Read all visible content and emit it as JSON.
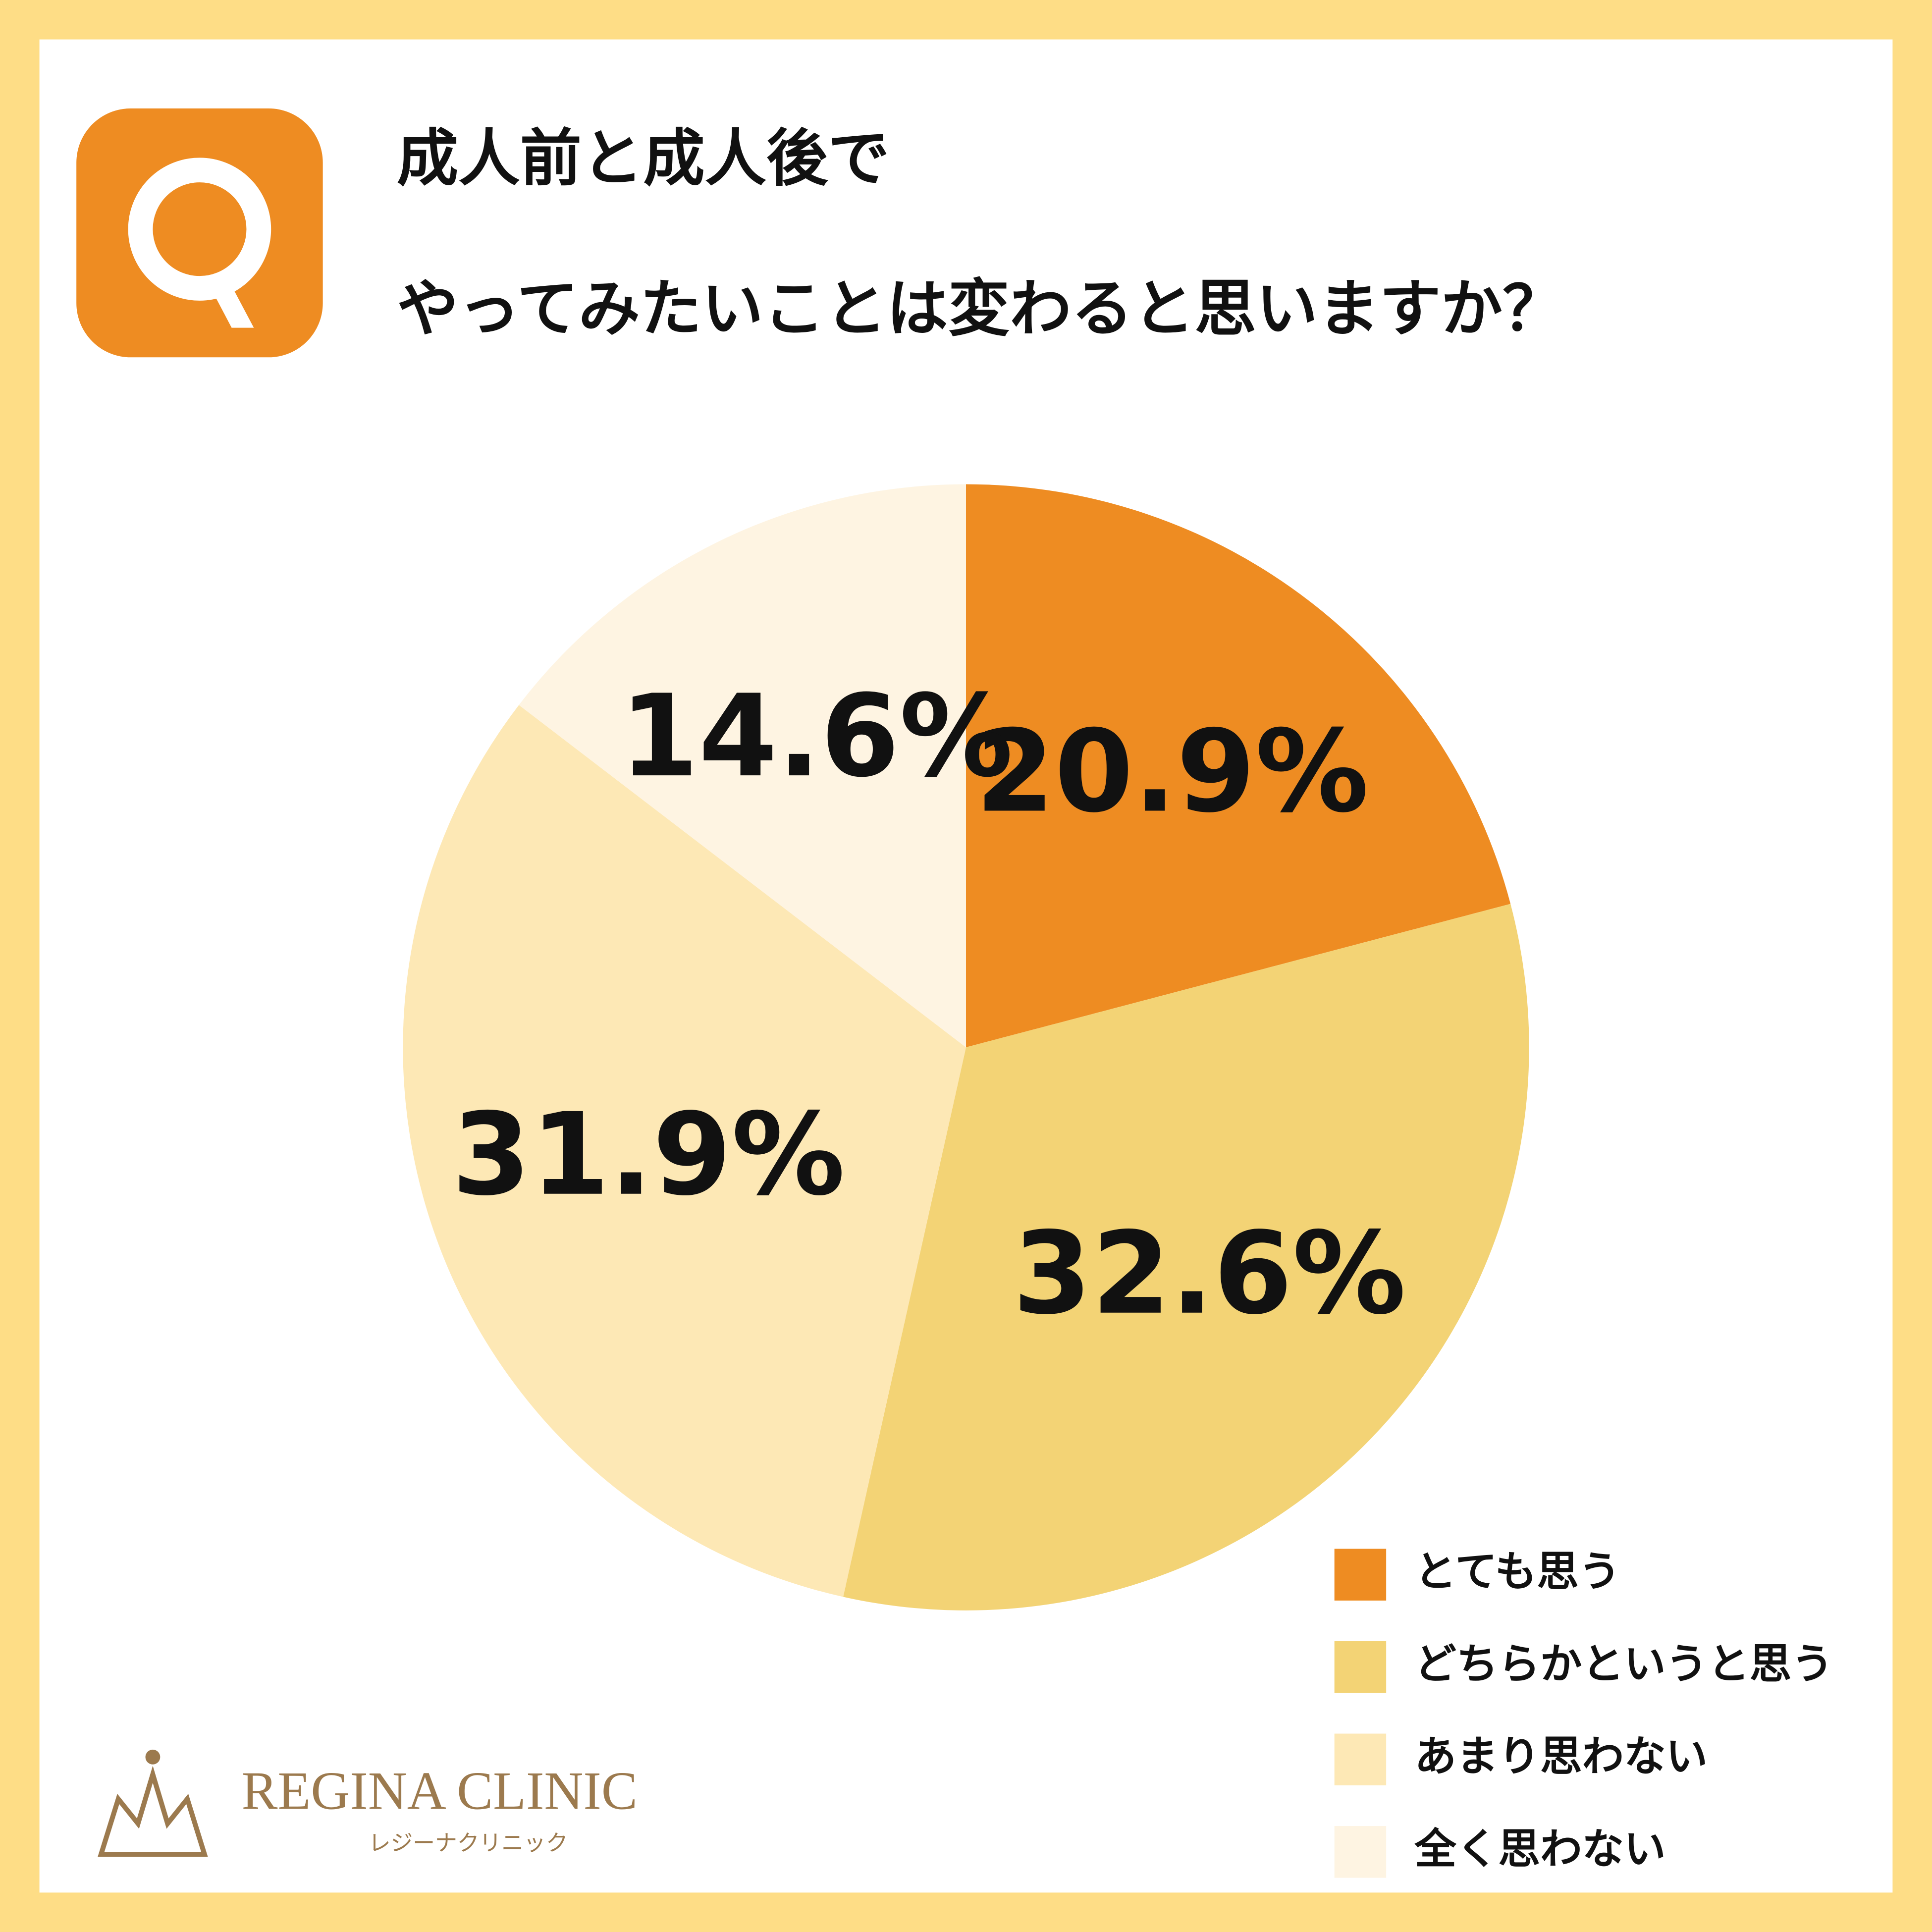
{
  "chart_data": {
    "type": "pie",
    "title": [
      "成人前と成人後で",
      "やってみたいことは変わると思いますか？"
    ],
    "categories": [
      "とても思う",
      "どちらかというと思う",
      "あまり思わない",
      "全く思わない"
    ],
    "values": [
      20.9,
      32.6,
      31.9,
      14.6
    ],
    "value_labels": [
      "20.9%",
      "32.6%",
      "31.9%",
      "14.6%"
    ],
    "colors": [
      "#ee8c22",
      "#f3d375",
      "#fde8b5",
      "#fef4e2"
    ],
    "legend": "bottom-right"
  },
  "logo": {
    "name": "REGINA CLINIC",
    "subtitle": "レジーナクリニック"
  }
}
